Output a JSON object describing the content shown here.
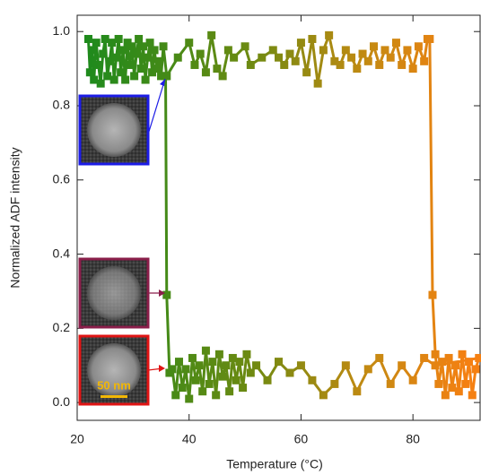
{
  "chart_data": {
    "type": "line",
    "xlabel": "Temperature (°C)",
    "ylabel": "Normalized ADF intensity",
    "xlim": [
      20,
      92
    ],
    "ylim": [
      -0.048,
      1.044
    ],
    "xticks": [
      20,
      40,
      60,
      80
    ],
    "yticks": [
      {
        "value": 0,
        "label": "0.0"
      },
      0.2,
      0.4,
      0.6,
      0.8,
      {
        "value": 1,
        "label": "1.0"
      }
    ],
    "colormap": [
      {
        "value": 22,
        "color": "#1f8a1c"
      },
      {
        "value": 50,
        "color": "#6a8a12"
      },
      {
        "value": 72,
        "color": "#c48a12"
      },
      {
        "value": 90,
        "color": "#f58012"
      }
    ],
    "scale_bar_label": "50 nm",
    "x": [
      22,
      22.3,
      22.7,
      23,
      23.4,
      23.8,
      24.2,
      24.6,
      25,
      25.4,
      25.8,
      26.2,
      26.6,
      27,
      27.4,
      27.8,
      28.2,
      28.6,
      29,
      29.4,
      29.8,
      30.2,
      30.6,
      31,
      31.4,
      31.8,
      32.2,
      32.6,
      33,
      33.4,
      33.8,
      34.2,
      34.6,
      35,
      35.4,
      36,
      38,
      40,
      41,
      42,
      43,
      44,
      45,
      46,
      47,
      48,
      50,
      51,
      53,
      55,
      56,
      57,
      58,
      59,
      60,
      61,
      62,
      63,
      64,
      65,
      66,
      67,
      68,
      69,
      70,
      71,
      72,
      73,
      74,
      75,
      76,
      77,
      78,
      79,
      80,
      81,
      82,
      82.6,
      83,
      83.5,
      84,
      84.6,
      85.2,
      85.8,
      86.4,
      87,
      87.6,
      88.2,
      88.8,
      89.4,
      90,
      90.6,
      91.2,
      91.8,
      84,
      82,
      80,
      78,
      76,
      74,
      72,
      70,
      68,
      66,
      64,
      62,
      60,
      58,
      56,
      54,
      52,
      51,
      50.3,
      49.6,
      49,
      48.4,
      47.8,
      47.2,
      46.6,
      46,
      45.4,
      44.8,
      44.2,
      43.6,
      43,
      42.4,
      41.8,
      41.2,
      40.6,
      40,
      39.4,
      38.8,
      38.2,
      37.6,
      37,
      36.5,
      36,
      35.8
    ],
    "values": [
      0.98,
      0.89,
      0.95,
      0.87,
      0.97,
      0.91,
      0.86,
      0.94,
      0.98,
      0.88,
      0.92,
      0.97,
      0.87,
      0.93,
      0.98,
      0.89,
      0.95,
      0.87,
      0.97,
      0.91,
      0.96,
      0.88,
      0.94,
      0.98,
      0.9,
      0.96,
      0.87,
      0.93,
      0.97,
      0.89,
      0.95,
      0.9,
      0.92,
      0.88,
      0.96,
      0.88,
      0.93,
      0.97,
      0.91,
      0.94,
      0.89,
      0.99,
      0.9,
      0.88,
      0.95,
      0.93,
      0.96,
      0.91,
      0.93,
      0.95,
      0.93,
      0.91,
      0.94,
      0.92,
      0.97,
      0.89,
      0.98,
      0.86,
      0.95,
      0.99,
      0.92,
      0.91,
      0.95,
      0.93,
      0.9,
      0.94,
      0.92,
      0.96,
      0.91,
      0.95,
      0.93,
      0.97,
      0.91,
      0.95,
      0.9,
      0.96,
      0.92,
      0.98,
      0.98,
      0.29,
      0.13,
      0.05,
      0.11,
      0.02,
      0.12,
      0.04,
      0.1,
      0.03,
      0.13,
      0.05,
      0.11,
      0.02,
      0.09,
      0.12,
      0.1,
      0.12,
      0.06,
      0.1,
      0.05,
      0.12,
      0.09,
      0.03,
      0.1,
      0.05,
      0.02,
      0.06,
      0.1,
      0.08,
      0.11,
      0.06,
      0.1,
      0.08,
      0.13,
      0.04,
      0.11,
      0.06,
      0.12,
      0.03,
      0.1,
      0.07,
      0.13,
      0.02,
      0.11,
      0.05,
      0.14,
      0.03,
      0.1,
      0.06,
      0.12,
      0.01,
      0.09,
      0.04,
      0.11,
      0.02,
      0.09,
      0.08,
      0.29,
      0.88
    ]
  }
}
